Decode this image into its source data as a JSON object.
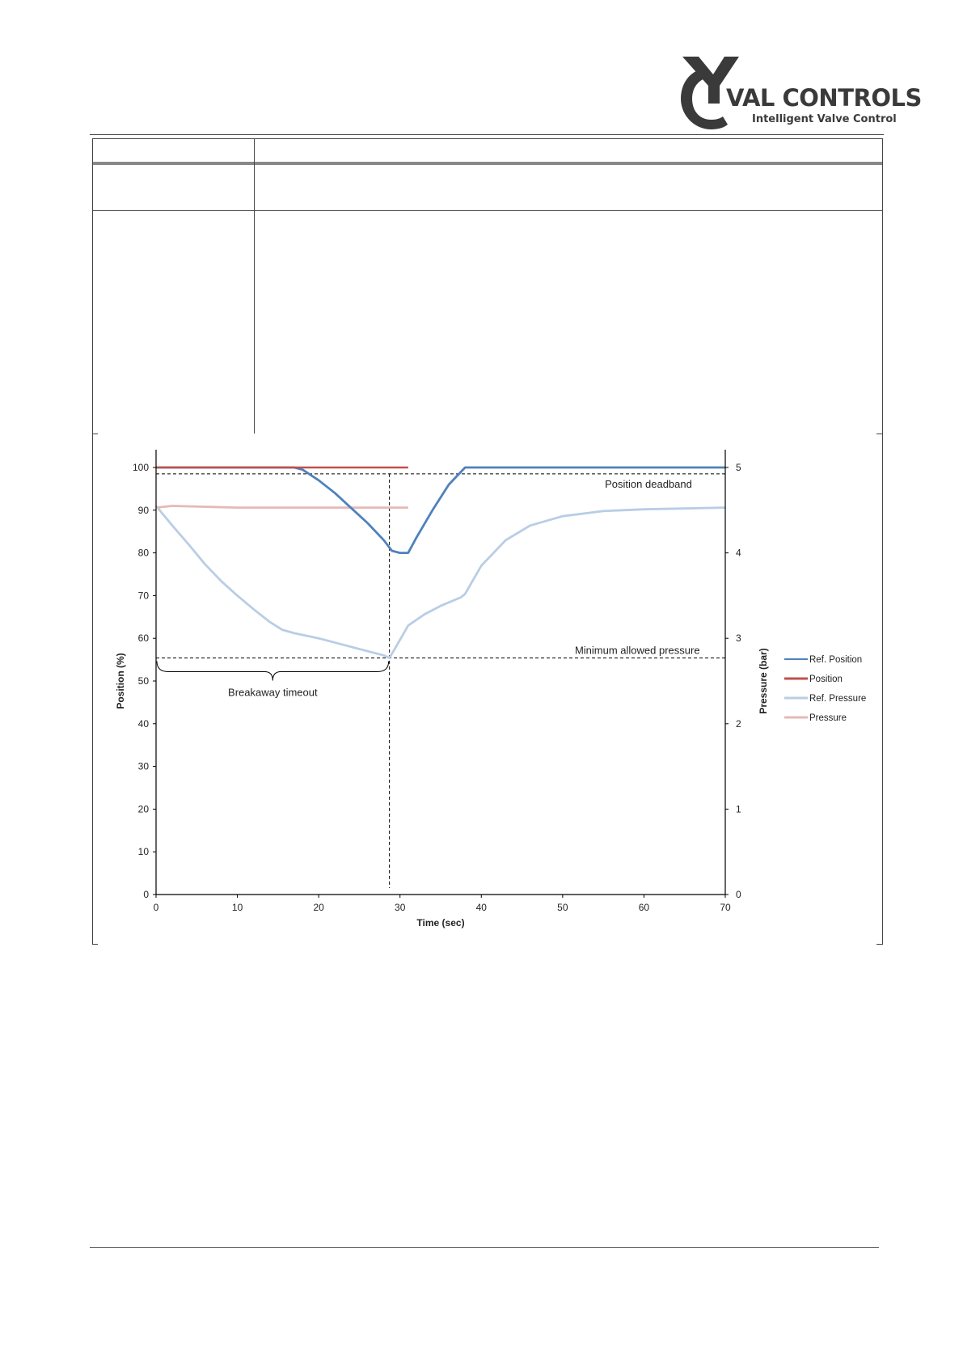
{
  "brand": {
    "name": "VAL CONTROLS",
    "tagline": "Intelligent Valve Control",
    "logo_dark": "#3a3a3a"
  },
  "chart_data": {
    "type": "line",
    "xlabel": "Time (sec)",
    "ylabel": "Position (%)",
    "y2label": "Pressure (bar)",
    "xlim": [
      0,
      70
    ],
    "ylim": [
      0,
      100
    ],
    "y2lim": [
      0,
      5
    ],
    "xticks": [
      0,
      10,
      20,
      30,
      40,
      50,
      60,
      70
    ],
    "yticks": [
      0,
      10,
      20,
      30,
      40,
      50,
      60,
      70,
      80,
      90,
      100
    ],
    "y2ticks": [
      0,
      1,
      2,
      3,
      4,
      5
    ],
    "grid": false,
    "legend_position": "right",
    "series": [
      {
        "name": "Ref. Position",
        "axis": "left",
        "color": "#4f81bd",
        "x": [
          0,
          15,
          17,
          18,
          20,
          22,
          24,
          26,
          28,
          29,
          30,
          31,
          32,
          34,
          36,
          38,
          40,
          50,
          60,
          70
        ],
        "y": [
          100,
          100,
          100,
          99.5,
          97,
          94,
          90.5,
          87,
          83,
          80.5,
          80,
          80,
          83.5,
          90,
          96,
          100,
          100,
          100,
          100,
          100
        ]
      },
      {
        "name": "Position",
        "axis": "left",
        "color": "#c0504d",
        "x": [
          0,
          31
        ],
        "y": [
          100,
          100
        ]
      },
      {
        "name": "Ref. Pressure",
        "axis": "right",
        "color": "#b9cde5",
        "x": [
          0,
          2,
          4,
          6,
          8,
          10,
          12,
          14,
          15.5,
          17,
          20,
          24,
          28,
          28.7,
          29.5,
          31,
          33,
          35,
          37.5,
          38,
          40,
          43,
          46,
          50,
          55,
          60,
          65,
          70
        ],
        "y": [
          4.55,
          4.32,
          4.1,
          3.87,
          3.67,
          3.5,
          3.34,
          3.19,
          3.1,
          3.06,
          3.0,
          2.9,
          2.8,
          2.77,
          2.9,
          3.15,
          3.28,
          3.38,
          3.48,
          3.52,
          3.85,
          4.15,
          4.32,
          4.43,
          4.49,
          4.51,
          4.52,
          4.53
        ]
      },
      {
        "name": "Pressure",
        "axis": "right",
        "color": "#e6b9b8",
        "x": [
          0,
          2,
          10,
          20,
          31
        ],
        "y": [
          4.53,
          4.55,
          4.53,
          4.53,
          4.53
        ]
      }
    ],
    "annotations": {
      "position_deadband": {
        "label": "Position deadband",
        "y": 98.5
      },
      "min_pressure": {
        "label": "Minimum allowed pressure",
        "y2": 2.77
      },
      "breakaway_time": 28.7,
      "breakaway_label": "Breakaway timeout"
    }
  }
}
